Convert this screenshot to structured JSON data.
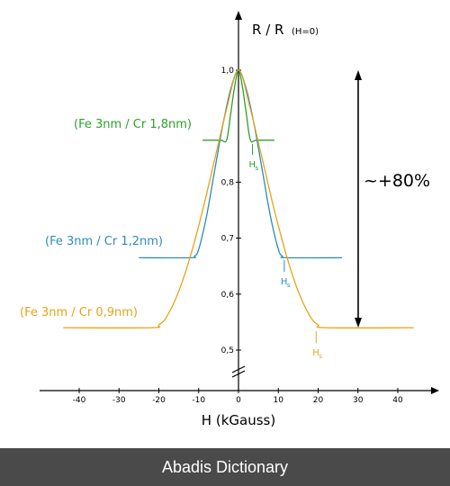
{
  "chart_data": {
    "type": "line",
    "ylabel_main": "R / R",
    "ylabel_sub": "(H=0)",
    "xlabel": "H  (kGauss)",
    "xlim": [
      -45,
      45
    ],
    "ylim": [
      0.5,
      1.0
    ],
    "x_ticks": [
      -40,
      -30,
      -20,
      -10,
      0,
      10,
      20,
      30,
      40
    ],
    "y_ticks": [
      {
        "v": 1.0,
        "label": "1,0"
      },
      {
        "v": 0.8,
        "label": "0,8"
      },
      {
        "v": 0.7,
        "label": "0,7"
      },
      {
        "v": 0.6,
        "label": "0,6"
      },
      {
        "v": 0.5,
        "label": "0,5"
      }
    ],
    "annotation_text": "~+80%",
    "series": [
      {
        "name": "(Fe 3nm / Cr 1,8nm)",
        "color": "#2ca02c",
        "x": [
          -9,
          -4.5,
          -3,
          -2,
          -1,
          0,
          1,
          2,
          3,
          4.5,
          9
        ],
        "y": [
          0.875,
          0.875,
          0.875,
          0.92,
          0.97,
          1.0,
          0.97,
          0.92,
          0.875,
          0.875,
          0.875
        ],
        "hs_label": "H",
        "hs_sub": "s",
        "hs_x": 3.5
      },
      {
        "name": "(Fe 3nm / Cr 1,2nm)",
        "color": "#2b8cbe",
        "x": [
          -25,
          -12,
          -11,
          -10,
          -8,
          -6,
          -4,
          -2,
          0,
          2,
          4,
          6,
          8,
          10,
          11,
          12,
          26
        ],
        "y": [
          0.665,
          0.665,
          0.668,
          0.68,
          0.74,
          0.82,
          0.9,
          0.965,
          1.0,
          0.965,
          0.9,
          0.82,
          0.74,
          0.68,
          0.668,
          0.665,
          0.665
        ],
        "hs_label": "H",
        "hs_sub": "s",
        "hs_x": 11.5
      },
      {
        "name": "(Fe 3nm / Cr 0,9nm)",
        "color": "#e8a317",
        "x": [
          -44,
          -22,
          -20,
          -18,
          -15,
          -12,
          -9,
          -6,
          -3,
          0,
          3,
          6,
          9,
          12,
          15,
          18,
          20,
          22,
          44
        ],
        "y": [
          0.54,
          0.54,
          0.545,
          0.56,
          0.605,
          0.67,
          0.75,
          0.84,
          0.93,
          1.0,
          0.93,
          0.84,
          0.75,
          0.67,
          0.605,
          0.56,
          0.545,
          0.54,
          0.54
        ],
        "hs_label": "H",
        "hs_sub": "s",
        "hs_x": 19.5
      }
    ]
  },
  "footer": {
    "text": "Abadis Dictionary"
  }
}
